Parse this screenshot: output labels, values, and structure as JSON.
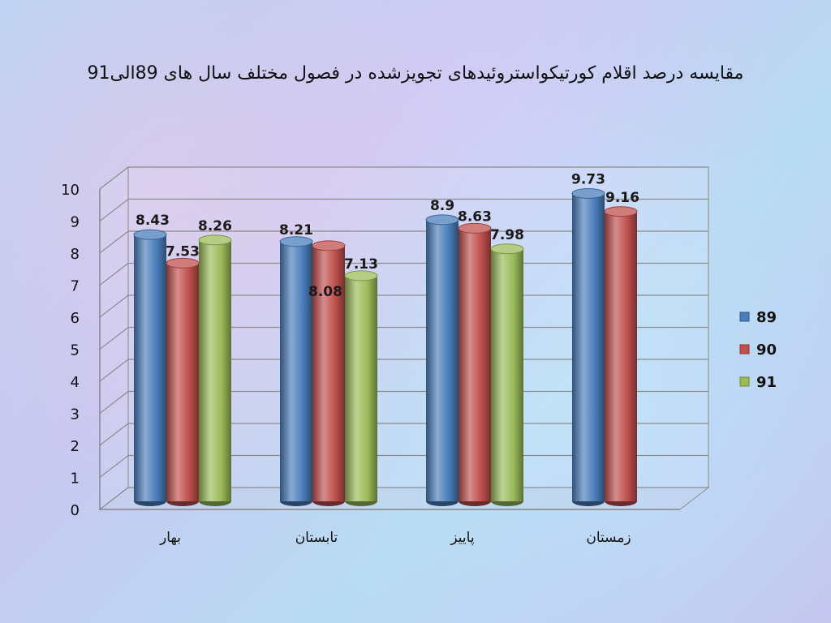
{
  "chart_data": {
    "type": "bar",
    "title": "مقایسه درصد اقلام کورتیکواستروئیدهای تجویزشده در فصول مختلف سال های 89الی91",
    "categories": [
      "بهار",
      "تابستان",
      "پاییز",
      "زمستان"
    ],
    "series": [
      {
        "name": "89",
        "color": "#4a7ebb",
        "values": [
          8.43,
          8.21,
          8.9,
          9.73
        ]
      },
      {
        "name": "90",
        "color": "#c0504d",
        "values": [
          7.53,
          8.08,
          8.63,
          9.16
        ]
      },
      {
        "name": "91",
        "color": "#9bbb59",
        "values": [
          8.26,
          7.13,
          7.98,
          null
        ]
      }
    ],
    "data_labels": [
      [
        "8.43",
        "8.21",
        "8.9",
        "9.73"
      ],
      [
        "7.53",
        "8.08",
        "8.63",
        "9.16"
      ],
      [
        "8.26",
        "7.13",
        "7.98",
        ""
      ]
    ],
    "yticks": [
      "0",
      "1",
      "2",
      "3",
      "4",
      "5",
      "6",
      "7",
      "8",
      "9",
      "10"
    ],
    "ylim": [
      0,
      10
    ],
    "grid": true,
    "legend_position": "right"
  }
}
